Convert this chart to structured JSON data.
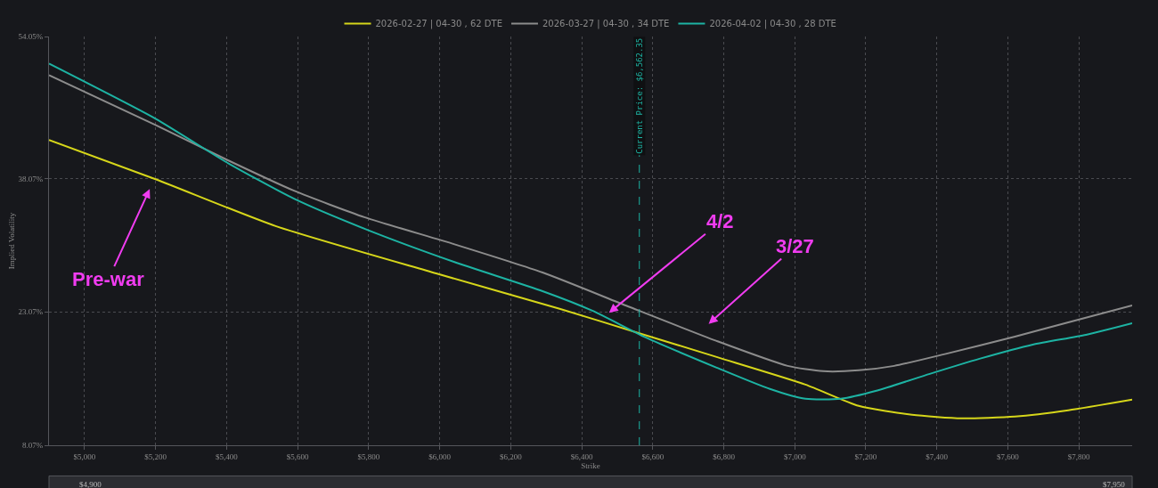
{
  "chart_data": {
    "type": "line",
    "xlabel": "Strike",
    "ylabel": "Implied Volatility",
    "xlim": [
      4900,
      7950
    ],
    "ylim": [
      8.07,
      54.05
    ],
    "xticks": [
      {
        "value": 5000,
        "label": "$5,000"
      },
      {
        "value": 5200,
        "label": "$5,200"
      },
      {
        "value": 5400,
        "label": "$5,400"
      },
      {
        "value": 5600,
        "label": "$5,600"
      },
      {
        "value": 5800,
        "label": "$5,800"
      },
      {
        "value": 6000,
        "label": "$6,000"
      },
      {
        "value": 6200,
        "label": "$6,200"
      },
      {
        "value": 6400,
        "label": "$6,400"
      },
      {
        "value": 6600,
        "label": "$6,600"
      },
      {
        "value": 6800,
        "label": "$6,800"
      },
      {
        "value": 7000,
        "label": "$7,000"
      },
      {
        "value": 7200,
        "label": "$7,200"
      },
      {
        "value": 7400,
        "label": "$7,400"
      },
      {
        "value": 7600,
        "label": "$7,600"
      },
      {
        "value": 7800,
        "label": "$7,800"
      }
    ],
    "yticks": [
      {
        "value": 8.07,
        "label": "8.07%"
      },
      {
        "value": 23.07,
        "label": "23.07%"
      },
      {
        "value": 38.07,
        "label": "38.07%"
      },
      {
        "value": 54.05,
        "label": "54.05%"
      }
    ],
    "grid": true,
    "legend": "top",
    "line_style": "solid",
    "series": [
      {
        "name": "2026-02-27 | 04-30 , 62 DTE",
        "color": "#d6d61a",
        "x": [
          4900,
          5200,
          5540,
          5990,
          6340,
          6560,
          6780,
          7030,
          7180,
          7330,
          7470,
          7620,
          7770,
          7950
        ],
        "values": [
          42.4,
          38.0,
          32.7,
          27.4,
          23.4,
          20.7,
          18.0,
          14.9,
          12.5,
          11.5,
          11.1,
          11.3,
          12.0,
          13.2
        ]
      },
      {
        "name": "2026-03-27 | 04-30 , 34 DTE",
        "color": "#8c8c8c",
        "x": [
          4900,
          5200,
          5400,
          5590,
          5790,
          6040,
          6290,
          6530,
          6780,
          6980,
          7080,
          7180,
          7280,
          7420,
          7620,
          7770,
          7950
        ],
        "values": [
          49.7,
          44.1,
          40.2,
          36.7,
          33.7,
          30.7,
          27.5,
          23.7,
          19.8,
          17.0,
          16.4,
          16.5,
          17.0,
          18.3,
          20.3,
          21.9,
          23.8
        ]
      },
      {
        "name": "2026-04-02 | 04-30 , 28 DTE",
        "color": "#1db3a3",
        "x": [
          4900,
          5200,
          5400,
          5590,
          5790,
          6040,
          6290,
          6430,
          6580,
          6780,
          6930,
          7030,
          7130,
          7230,
          7380,
          7520,
          7670,
          7820,
          7950
        ],
        "values": [
          51.0,
          44.8,
          39.9,
          35.8,
          32.4,
          28.7,
          25.4,
          23.2,
          20.2,
          16.8,
          14.4,
          13.3,
          13.3,
          14.2,
          16.1,
          17.8,
          19.4,
          20.5,
          21.8
        ]
      }
    ],
    "ref_lines": [
      {
        "axis": "x",
        "value": 6562.35,
        "label": "Current Price: $6,562.35",
        "color": "#1db3a3",
        "line_style": "dashed"
      }
    ],
    "annotations": [
      "Pre-war",
      "4/2",
      "3/27",
      "$4,900",
      "$7,950"
    ]
  }
}
